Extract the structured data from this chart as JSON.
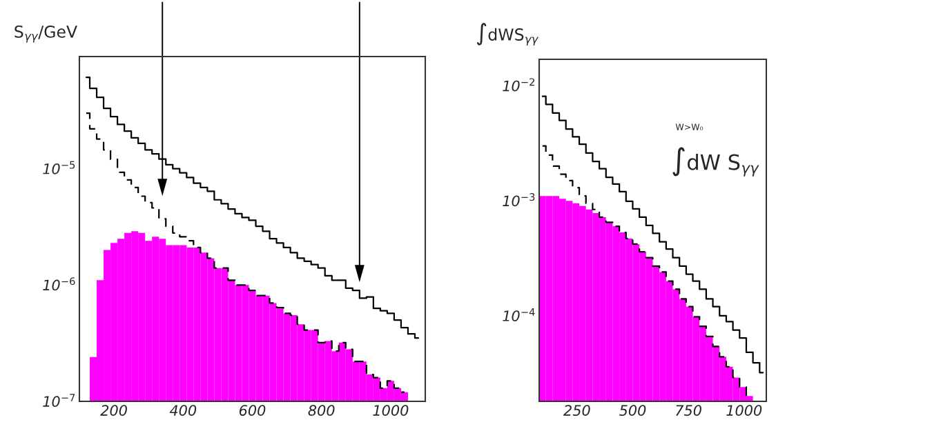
{
  "chart_data": [
    {
      "type": "histogram",
      "ylabel": "S$_{γγ}$/GeV",
      "log": "y",
      "grid": false,
      "xlim": [
        100,
        1100
      ],
      "xticks": [
        200,
        400,
        600,
        800,
        1000
      ],
      "ylim": [
        1e-07,
        9.2e-05
      ],
      "yticks": [
        {
          "value": 1e-07,
          "label": "10$^{−7}$"
        },
        {
          "value": 1e-06,
          "label": "10$^{−6}$"
        },
        {
          "value": 1e-05,
          "label": "10$^{−5}$"
        }
      ],
      "bins": [
        110,
        130,
        150,
        170,
        190,
        210,
        230,
        250,
        270,
        290,
        310,
        330,
        350,
        370,
        390,
        410,
        430,
        450,
        470,
        490,
        510,
        530,
        550,
        570,
        590,
        610,
        630,
        650,
        670,
        690,
        710,
        730,
        750,
        770,
        790,
        810,
        830,
        850,
        870,
        890,
        910,
        930,
        950,
        970,
        990,
        1010,
        1030,
        1050,
        1070,
        1090
      ],
      "series": [
        {
          "color": "#ff00ff",
          "values": [
            null,
            2.4e-07,
            1.1e-06,
            2e-06,
            2.3e-06,
            2.5e-06,
            2.8e-06,
            2.9e-06,
            2.8e-06,
            2.4e-06,
            2.6e-06,
            2.5e-06,
            2.2e-06,
            2.2e-06,
            2.2e-06,
            2.1e-06,
            2.1e-06,
            1.9e-06,
            1.7e-06,
            1.4e-06,
            1.4e-06,
            1.1e-06,
            1e-06,
            1e-06,
            9e-07,
            8.1e-07,
            8.1e-07,
            7e-07,
            6.4e-07,
            5.7e-07,
            5.5e-07,
            4.6e-07,
            4.1e-07,
            4.1e-07,
            3.2e-07,
            3.3e-07,
            2.7e-07,
            3.2e-07,
            2.8e-07,
            2.2e-07,
            2.2e-07,
            1.7e-07,
            1.6e-07,
            1.3e-07,
            1.5e-07,
            1.3e-07,
            1.2e-07,
            null,
            null
          ]
        },
        {
          "type": "step",
          "color": "#000000",
          "line_style": "solid",
          "x": [
            120,
            140,
            160,
            180,
            200,
            220,
            240,
            260,
            280,
            300,
            320,
            340,
            360,
            380,
            400,
            420,
            440,
            460,
            480,
            500,
            520,
            540,
            560,
            580,
            600,
            620,
            640,
            660,
            680,
            700,
            720,
            740,
            760,
            780,
            800,
            820,
            840,
            860,
            880,
            900,
            920,
            940,
            960,
            980,
            1000,
            1020,
            1040,
            1060,
            1080
          ],
          "values": [
            6.1e-05,
            4.9e-05,
            4.1e-05,
            3.3e-05,
            2.8e-05,
            2.4e-05,
            2.1e-05,
            1.84e-05,
            1.65e-05,
            1.45e-05,
            1.34e-05,
            1.21e-05,
            1.08e-05,
            1e-05,
            9.2e-06,
            8.4e-06,
            7.5e-06,
            6.9e-06,
            6.4e-06,
            5.4e-06,
            5e-06,
            4.5e-06,
            4.1e-06,
            3.8e-06,
            3.6e-06,
            3.2e-06,
            2.9e-06,
            2.5e-06,
            2.3e-06,
            2.1e-06,
            1.9e-06,
            1.7e-06,
            1.6e-06,
            1.5e-06,
            1.4e-06,
            1.2e-06,
            1.1e-06,
            1.1e-06,
            9.4e-07,
            9e-07,
            7.7e-07,
            7.9e-07,
            6.3e-07,
            6e-07,
            5.7e-07,
            5e-07,
            4.3e-07,
            3.8e-07,
            3.5e-07
          ]
        },
        {
          "type": "step",
          "color": "#000000",
          "line_style": "dashed",
          "x": [
            120,
            140,
            160,
            180,
            200,
            220,
            240,
            260,
            280,
            300,
            320,
            340,
            360,
            380,
            400,
            420,
            440,
            460,
            480,
            500,
            520,
            540,
            560,
            580,
            600,
            620,
            640,
            660,
            680,
            700,
            720,
            740,
            760,
            780,
            800,
            820,
            840,
            860,
            880,
            900,
            920,
            940,
            960,
            980,
            1000,
            1020,
            1040
          ],
          "values": [
            3e-05,
            2.2e-05,
            1.8e-05,
            1.45e-05,
            1.2e-05,
            9.3e-06,
            8e-06,
            6.9e-06,
            5.8e-06,
            5.1e-06,
            4.6e-06,
            3.7e-06,
            3.2e-06,
            2.8e-06,
            2.6e-06,
            2.4e-06,
            2.1e-06,
            1.9e-06,
            1.7e-06,
            1.4e-06,
            1.4e-06,
            1.1e-06,
            1e-06,
            1e-06,
            9e-07,
            8.1e-07,
            8.1e-07,
            7e-07,
            6.4e-07,
            5.7e-07,
            5.5e-07,
            4.6e-07,
            4.1e-07,
            4.1e-07,
            3.2e-07,
            3.3e-07,
            2.7e-07,
            3.2e-07,
            2.8e-07,
            2.2e-07,
            2.2e-07,
            1.7e-07,
            1.6e-07,
            1.3e-07,
            1.5e-07,
            1.3e-07,
            1.2e-07
          ]
        }
      ]
    },
    {
      "type": "histogram",
      "ylabel": "∫dWS$_{γγ}$",
      "log": "y",
      "grid": false,
      "xlim": [
        80,
        1100
      ],
      "xticks": [
        250,
        500,
        750,
        1000
      ],
      "ylim": [
        1.8e-05,
        0.017
      ],
      "yticks": [
        {
          "value": 0.0001,
          "label": "10$^{−4}$"
        },
        {
          "value": 0.001,
          "label": "10$^{−3}$"
        },
        {
          "value": 0.01,
          "label": "10$^{−2}$"
        }
      ],
      "bins": [
        80,
        110,
        140,
        170,
        200,
        230,
        260,
        290,
        320,
        350,
        380,
        410,
        440,
        470,
        500,
        530,
        560,
        590,
        620,
        650,
        680,
        710,
        740,
        770,
        800,
        830,
        860,
        890,
        920,
        950,
        980,
        1010,
        1040,
        1070,
        1100
      ],
      "series": [
        {
          "color": "#ff00ff",
          "values": [
            0.0011,
            0.0011,
            0.0011,
            0.00104,
            0.001,
            0.00095,
            0.0009,
            0.00084,
            0.00078,
            0.00072,
            0.00065,
            0.0006,
            0.00053,
            0.00047,
            0.00042,
            0.00036,
            0.00032,
            0.00027,
            0.00024,
            0.0002,
            0.00017,
            0.00014,
            0.00012,
            9.8e-05,
            8.1e-05,
            6.6e-05,
            5.4e-05,
            4.4e-05,
            3.6e-05,
            2.9e-05,
            2.4e-05,
            2e-05,
            null,
            null
          ]
        },
        {
          "type": "step",
          "color": "#000000",
          "line_style": "solid",
          "x": [
            95,
            125,
            155,
            185,
            215,
            245,
            275,
            305,
            335,
            365,
            395,
            425,
            455,
            485,
            515,
            545,
            575,
            605,
            635,
            665,
            695,
            725,
            755,
            785,
            815,
            845,
            875,
            905,
            935,
            965,
            995,
            1025,
            1055,
            1085
          ],
          "values": [
            0.0081,
            0.0069,
            0.0058,
            0.005,
            0.0042,
            0.0036,
            0.0031,
            0.0026,
            0.0022,
            0.0019,
            0.0016,
            0.0014,
            0.0012,
            0.00099,
            0.00085,
            0.00072,
            0.00061,
            0.00052,
            0.00044,
            0.00038,
            0.00032,
            0.00027,
            0.00023,
            0.0002,
            0.00017,
            0.00014,
            0.00012,
            0.0001,
            8.9e-05,
            7.5e-05,
            6.4e-05,
            4.8e-05,
            3.9e-05,
            3.2e-05
          ]
        },
        {
          "type": "step",
          "color": "#000000",
          "line_style": "dashed",
          "x": [
            95,
            125,
            155,
            185,
            215,
            245,
            275,
            305,
            335,
            365,
            395,
            425,
            455,
            485,
            515,
            545,
            575,
            605,
            635,
            665,
            695,
            725,
            755,
            785,
            815,
            845,
            875,
            905,
            935,
            965,
            995,
            1025
          ],
          "values": [
            0.003,
            0.0025,
            0.002,
            0.0017,
            0.0015,
            0.0013,
            0.0011,
            0.00095,
            0.00084,
            0.00072,
            0.00065,
            0.0006,
            0.00053,
            0.00047,
            0.00042,
            0.00036,
            0.00032,
            0.00027,
            0.00024,
            0.0002,
            0.00017,
            0.00014,
            0.00012,
            9.8e-05,
            8.1e-05,
            6.6e-05,
            5.4e-05,
            4.4e-05,
            3.6e-05,
            2.9e-05,
            2.4e-05,
            2e-05
          ]
        }
      ],
      "annotations": [
        "W>W₀",
        "∫dW S$_{γγ}$"
      ]
    }
  ]
}
